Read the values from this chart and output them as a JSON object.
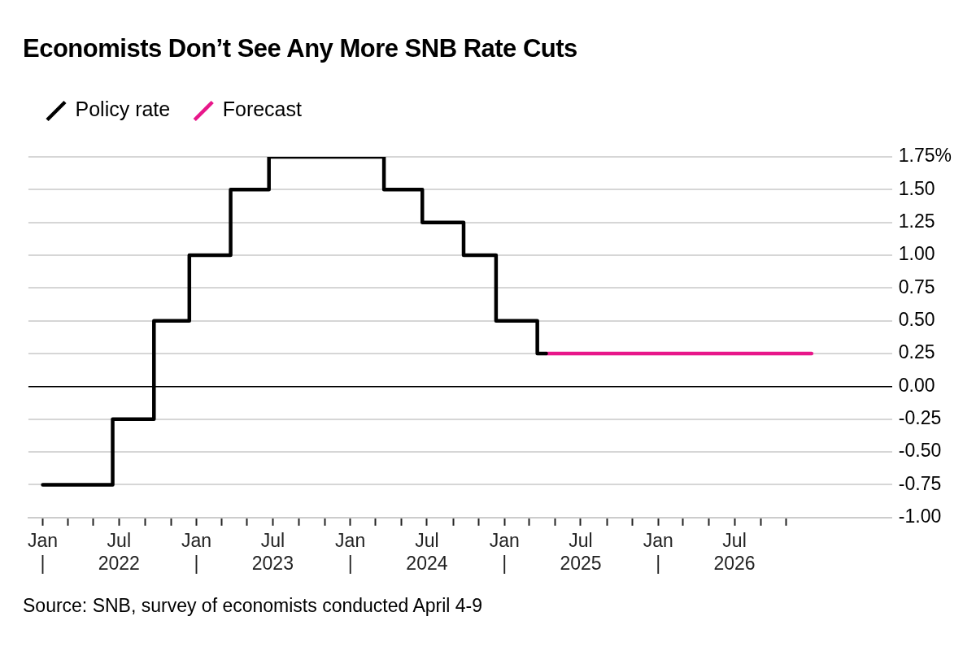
{
  "chart_data": {
    "type": "step",
    "title": "Economists Don’t See Any More SNB Rate Cuts",
    "series": [
      {
        "name": "Policy rate",
        "color": "#000000",
        "x": [
          "2022-01-01",
          "2022-06-16",
          "2022-09-22",
          "2022-12-15",
          "2023-03-23",
          "2023-06-22",
          "2024-03-21",
          "2024-06-20",
          "2024-09-26",
          "2024-12-12",
          "2025-03-20",
          "2025-04-10"
        ],
        "values": [
          -0.75,
          -0.25,
          0.5,
          1.0,
          1.5,
          1.75,
          1.5,
          1.25,
          1.0,
          0.5,
          0.25,
          0.25
        ]
      },
      {
        "name": "Forecast",
        "color": "#e8178a",
        "x": [
          "2025-04-10",
          "2026-12-31"
        ],
        "values": [
          0.25,
          0.25
        ]
      }
    ],
    "xlim": [
      "2021-11-28",
      "2027-07-10"
    ],
    "xticks": [
      {
        "value": "2022-01-01",
        "label": "Jan\n|"
      },
      {
        "value": "2022-03-01",
        "label": null
      },
      {
        "value": "2022-05-01",
        "label": null
      },
      {
        "value": "2022-07-01",
        "label": "Jul\n2022"
      },
      {
        "value": "2022-09-01",
        "label": null
      },
      {
        "value": "2022-11-01",
        "label": null
      },
      {
        "value": "2023-01-01",
        "label": "Jan\n|"
      },
      {
        "value": "2023-03-01",
        "label": null
      },
      {
        "value": "2023-05-01",
        "label": null
      },
      {
        "value": "2023-07-01",
        "label": "Jul\n2023"
      },
      {
        "value": "2023-09-01",
        "label": null
      },
      {
        "value": "2023-11-01",
        "label": null
      },
      {
        "value": "2024-01-01",
        "label": "Jan\n|"
      },
      {
        "value": "2024-03-01",
        "label": null
      },
      {
        "value": "2024-05-01",
        "label": null
      },
      {
        "value": "2024-07-01",
        "label": "Jul\n2024"
      },
      {
        "value": "2024-09-01",
        "label": null
      },
      {
        "value": "2024-11-01",
        "label": null
      },
      {
        "value": "2025-01-01",
        "label": "Jan\n|"
      },
      {
        "value": "2025-03-01",
        "label": null
      },
      {
        "value": "2025-05-01",
        "label": null
      },
      {
        "value": "2025-07-01",
        "label": "Jul\n2025"
      },
      {
        "value": "2025-09-01",
        "label": null
      },
      {
        "value": "2025-11-01",
        "label": null
      },
      {
        "value": "2026-01-01",
        "label": "Jan\n|"
      },
      {
        "value": "2026-03-01",
        "label": null
      },
      {
        "value": "2026-05-01",
        "label": null
      },
      {
        "value": "2026-07-01",
        "label": "Jul\n2026"
      },
      {
        "value": "2026-09-01",
        "label": null
      },
      {
        "value": "2026-11-01",
        "label": null
      }
    ],
    "ylim": [
      -1.0,
      1.75
    ],
    "yticks": [
      {
        "value": -1.0,
        "label": "-1.00"
      },
      {
        "value": -0.75,
        "label": "-0.75"
      },
      {
        "value": -0.5,
        "label": "-0.50"
      },
      {
        "value": -0.25,
        "label": "-0.25"
      },
      {
        "value": 0,
        "label": "0.00"
      },
      {
        "value": 0.25,
        "label": "0.25"
      },
      {
        "value": 0.5,
        "label": "0.50"
      },
      {
        "value": 0.75,
        "label": "0.75"
      },
      {
        "value": 1.0,
        "label": "1.00"
      },
      {
        "value": 1.25,
        "label": "1.25"
      },
      {
        "value": 1.5,
        "label": "1.50"
      },
      {
        "value": 1.75,
        "label": "1.75%"
      }
    ],
    "grid": "y",
    "legend": "top left",
    "marker": "none",
    "line_style": "solid",
    "annotations": [
      "Source: SNB, survey of economists conducted April 4-9"
    ]
  }
}
